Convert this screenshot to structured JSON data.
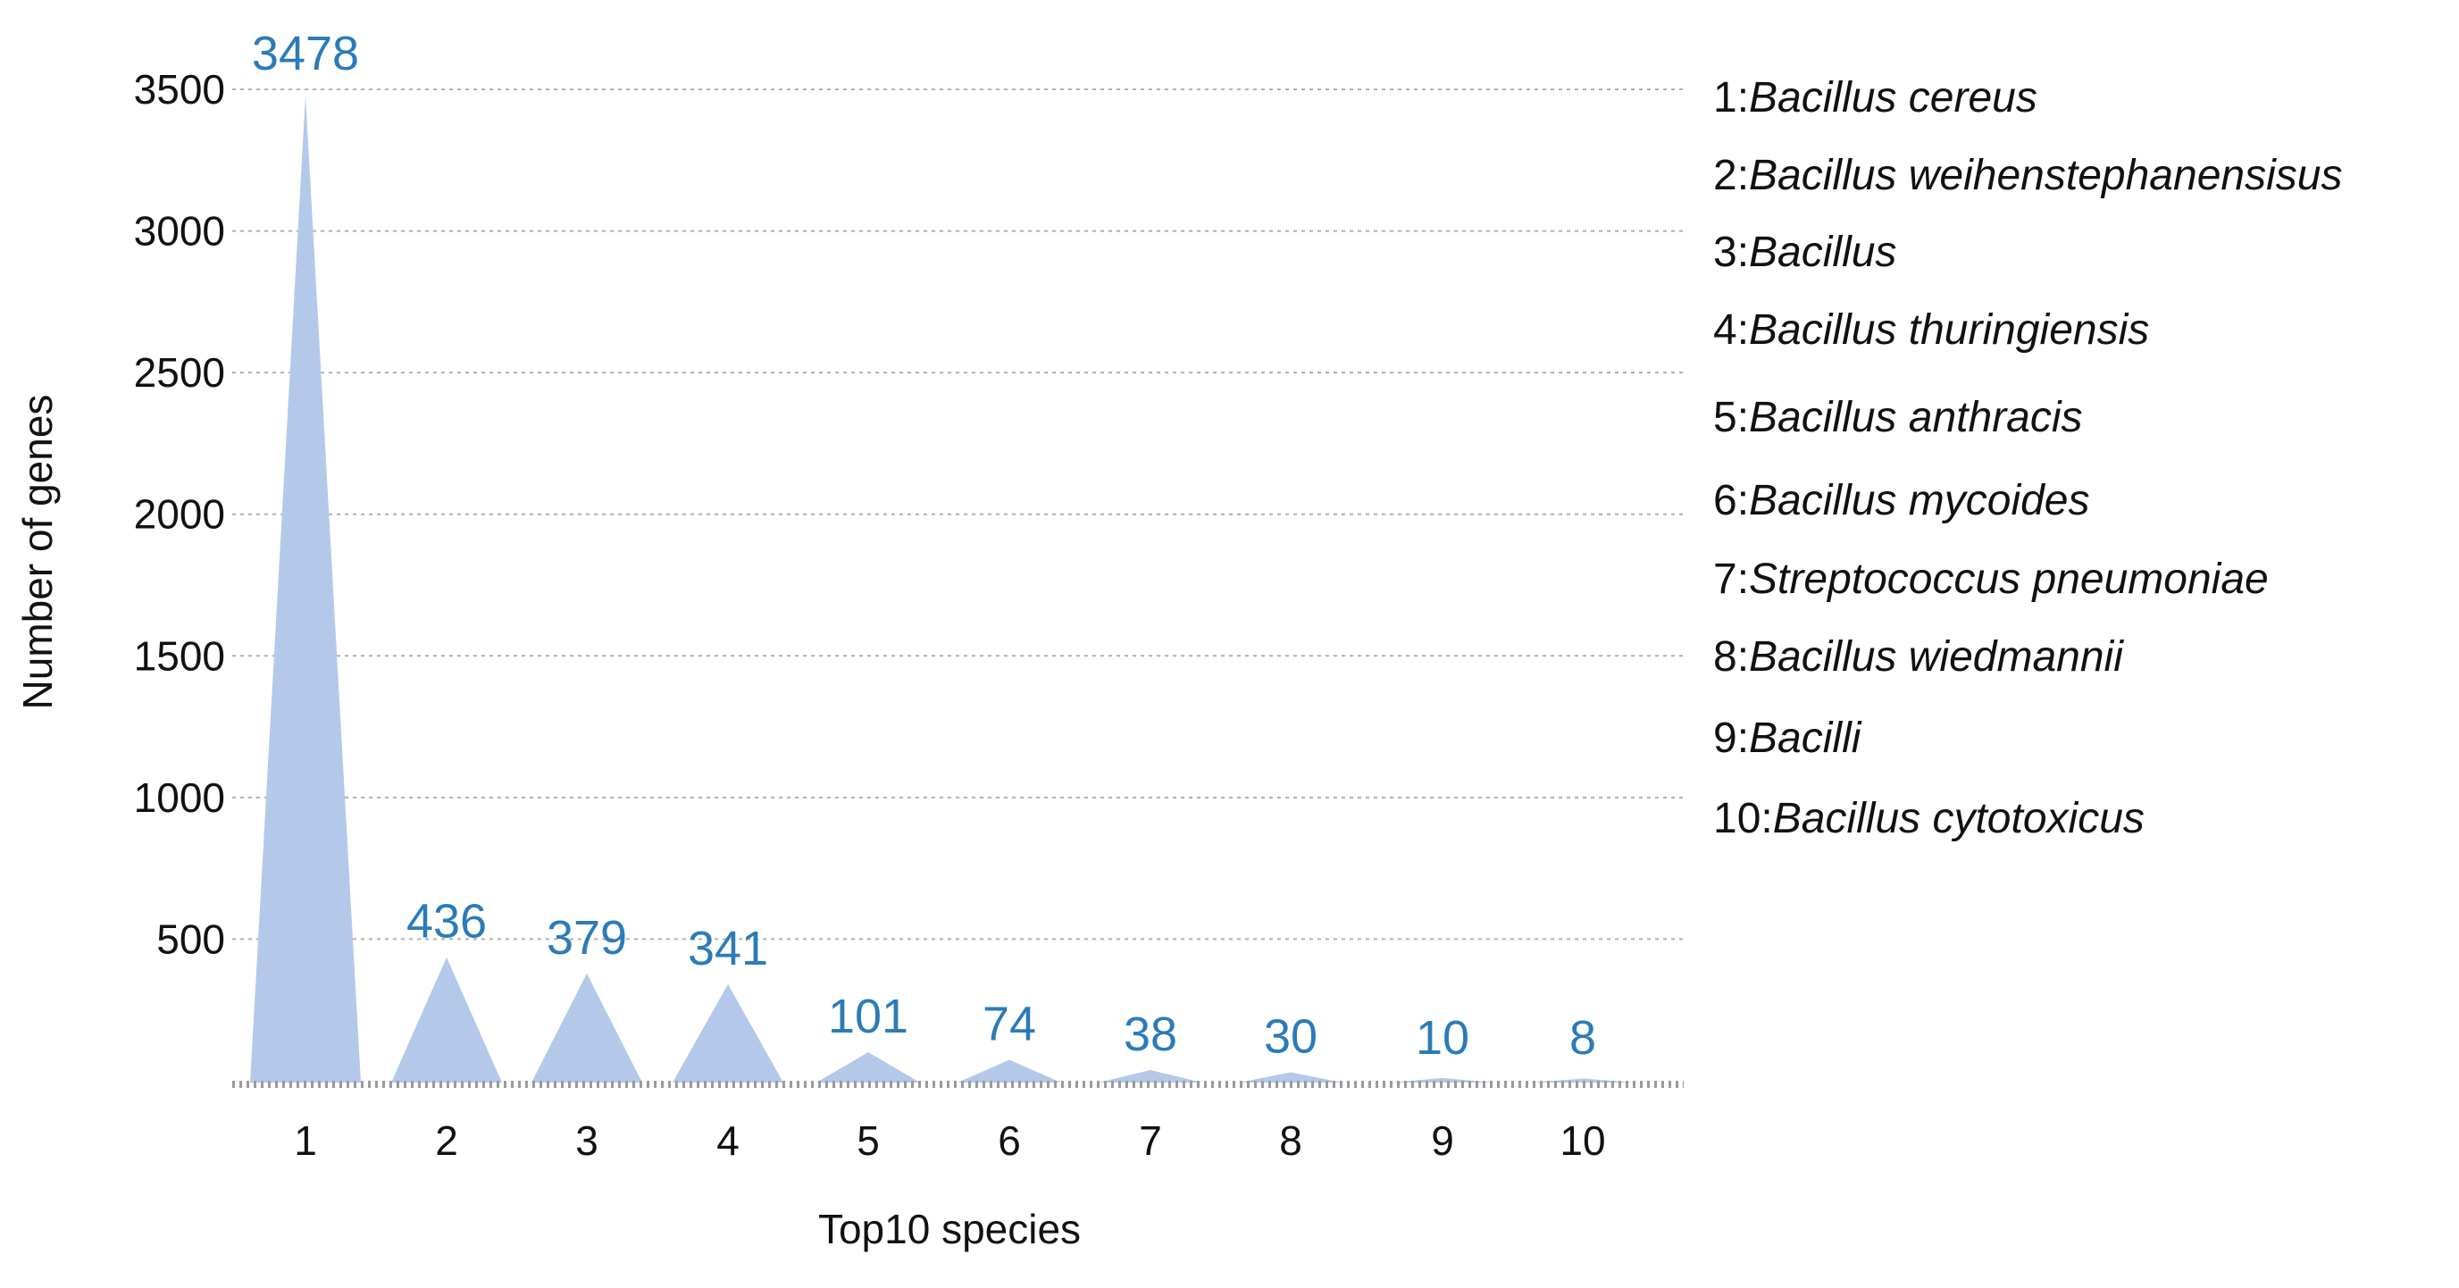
{
  "colors": {
    "fill": "#b4c9ea",
    "label": "#2b7bb9",
    "grid": "#b0b0b0",
    "text": "#111111"
  },
  "chart_data": {
    "type": "area",
    "title": "",
    "xlabel": "Top10 species",
    "ylabel": "Number of genes",
    "ylim": [
      0,
      3500
    ],
    "yticks": [
      500,
      1000,
      1500,
      2000,
      2500,
      3000,
      3500
    ],
    "grid": true,
    "categories": [
      "1",
      "2",
      "3",
      "4",
      "5",
      "6",
      "7",
      "8",
      "9",
      "10"
    ],
    "values": [
      3478,
      436,
      379,
      341,
      101,
      74,
      38,
      30,
      10,
      8
    ],
    "data_labels": [
      "3478",
      "436",
      "379",
      "341",
      "101",
      "74",
      "38",
      "30",
      "10",
      "8"
    ],
    "legend_position": "right",
    "legend": [
      {
        "number": "1:",
        "name": "Bacillus cereus"
      },
      {
        "number": "2:",
        "name": "Bacillus weihenstephanensisus"
      },
      {
        "number": "3:",
        "name": "Bacillus"
      },
      {
        "number": "4:",
        "name": "Bacillus thuringiensis"
      },
      {
        "number": "5:",
        "name": "Bacillus anthracis"
      },
      {
        "number": "6:",
        "name": "Bacillus mycoides"
      },
      {
        "number": "7:",
        "name": "Streptococcus pneumoniae"
      },
      {
        "number": "8:",
        "name": "Bacillus wiedmannii"
      },
      {
        "number": "9:",
        "name": "Bacilli"
      },
      {
        "number": "10:",
        "name": "Bacillus cytotoxicus"
      }
    ]
  }
}
